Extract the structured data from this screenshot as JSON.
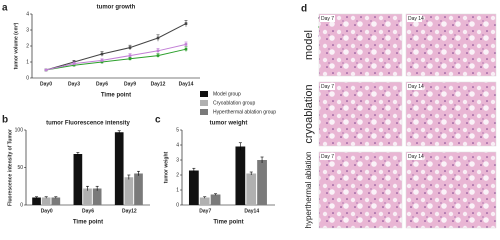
{
  "chart_data": [
    {
      "type": "line",
      "panel": "a",
      "title": "tumor growth",
      "x_label": "Time point",
      "y_label": "tumor volume (cm³)",
      "categories": [
        "Day0",
        "Day3",
        "Day6",
        "Day9",
        "Day12",
        "Day14"
      ],
      "series": [
        {
          "name": "Model group",
          "color": "#444444",
          "values": [
            0.5,
            1.0,
            1.5,
            1.9,
            2.5,
            3.4
          ],
          "errors": [
            0.05,
            0.1,
            0.15,
            0.15,
            0.2,
            0.2
          ]
        },
        {
          "name": "Cryoablation group",
          "color": "#2ca02c",
          "values": [
            0.5,
            0.8,
            1.0,
            1.2,
            1.4,
            1.8
          ],
          "errors": [
            0.05,
            0.08,
            0.1,
            0.1,
            0.12,
            0.15
          ]
        },
        {
          "name": "Hyperthermal ablation group",
          "color": "#c27fd6",
          "values": [
            0.5,
            0.9,
            1.1,
            1.4,
            1.7,
            2.1
          ],
          "errors": [
            0.05,
            0.1,
            0.1,
            0.12,
            0.15,
            0.15
          ]
        }
      ],
      "ylim": [
        0,
        4
      ],
      "yticks": [
        0,
        1,
        2,
        3,
        4
      ]
    },
    {
      "type": "bar",
      "panel": "b",
      "title": "tumor Fluorescence intensity",
      "x_label": "Time point",
      "y_label": "Fluorescence intensity of Tumor",
      "categories": [
        "Day0",
        "Day6",
        "Day12"
      ],
      "series": [
        {
          "name": "Model group",
          "color": "#111111",
          "values": [
            10,
            68,
            97
          ],
          "errors": [
            1,
            2,
            2
          ]
        },
        {
          "name": "Cryoablation group",
          "color": "#b0b0b0",
          "values": [
            10,
            22,
            37
          ],
          "errors": [
            1,
            3,
            3
          ]
        },
        {
          "name": "Hyperthermal ablation group",
          "color": "#7a7a7a",
          "values": [
            10,
            22,
            42
          ],
          "errors": [
            1,
            3,
            3
          ]
        }
      ],
      "ylim": [
        0,
        100
      ],
      "yticks": [
        0,
        50,
        100
      ]
    },
    {
      "type": "bar",
      "panel": "c",
      "title": "tumor weight",
      "x_label": "Time point",
      "y_label": "tumor weight",
      "categories": [
        "Day7",
        "Day14"
      ],
      "series": [
        {
          "color": "#111111",
          "values": [
            2.3,
            3.9
          ],
          "errors": [
            0.15,
            0.25
          ]
        },
        {
          "color": "#b0b0b0",
          "values": [
            0.5,
            2.1
          ],
          "errors": [
            0.05,
            0.1
          ]
        },
        {
          "color": "#7a7a7a",
          "values": [
            0.7,
            3.0
          ],
          "errors": [
            0.05,
            0.2
          ]
        }
      ],
      "ylim": [
        0,
        5
      ],
      "yticks": [
        0,
        1,
        2,
        3,
        4,
        5
      ]
    }
  ],
  "histology": {
    "panel": "d",
    "rows": [
      {
        "label": "model",
        "images": [
          "Day 7",
          "Day 14"
        ]
      },
      {
        "label": "cryoablation",
        "images": [
          "Day 7",
          "Day 14"
        ]
      },
      {
        "label": "hyperthermal ablation",
        "images": [
          "Day 7",
          "Day 14"
        ]
      }
    ]
  }
}
